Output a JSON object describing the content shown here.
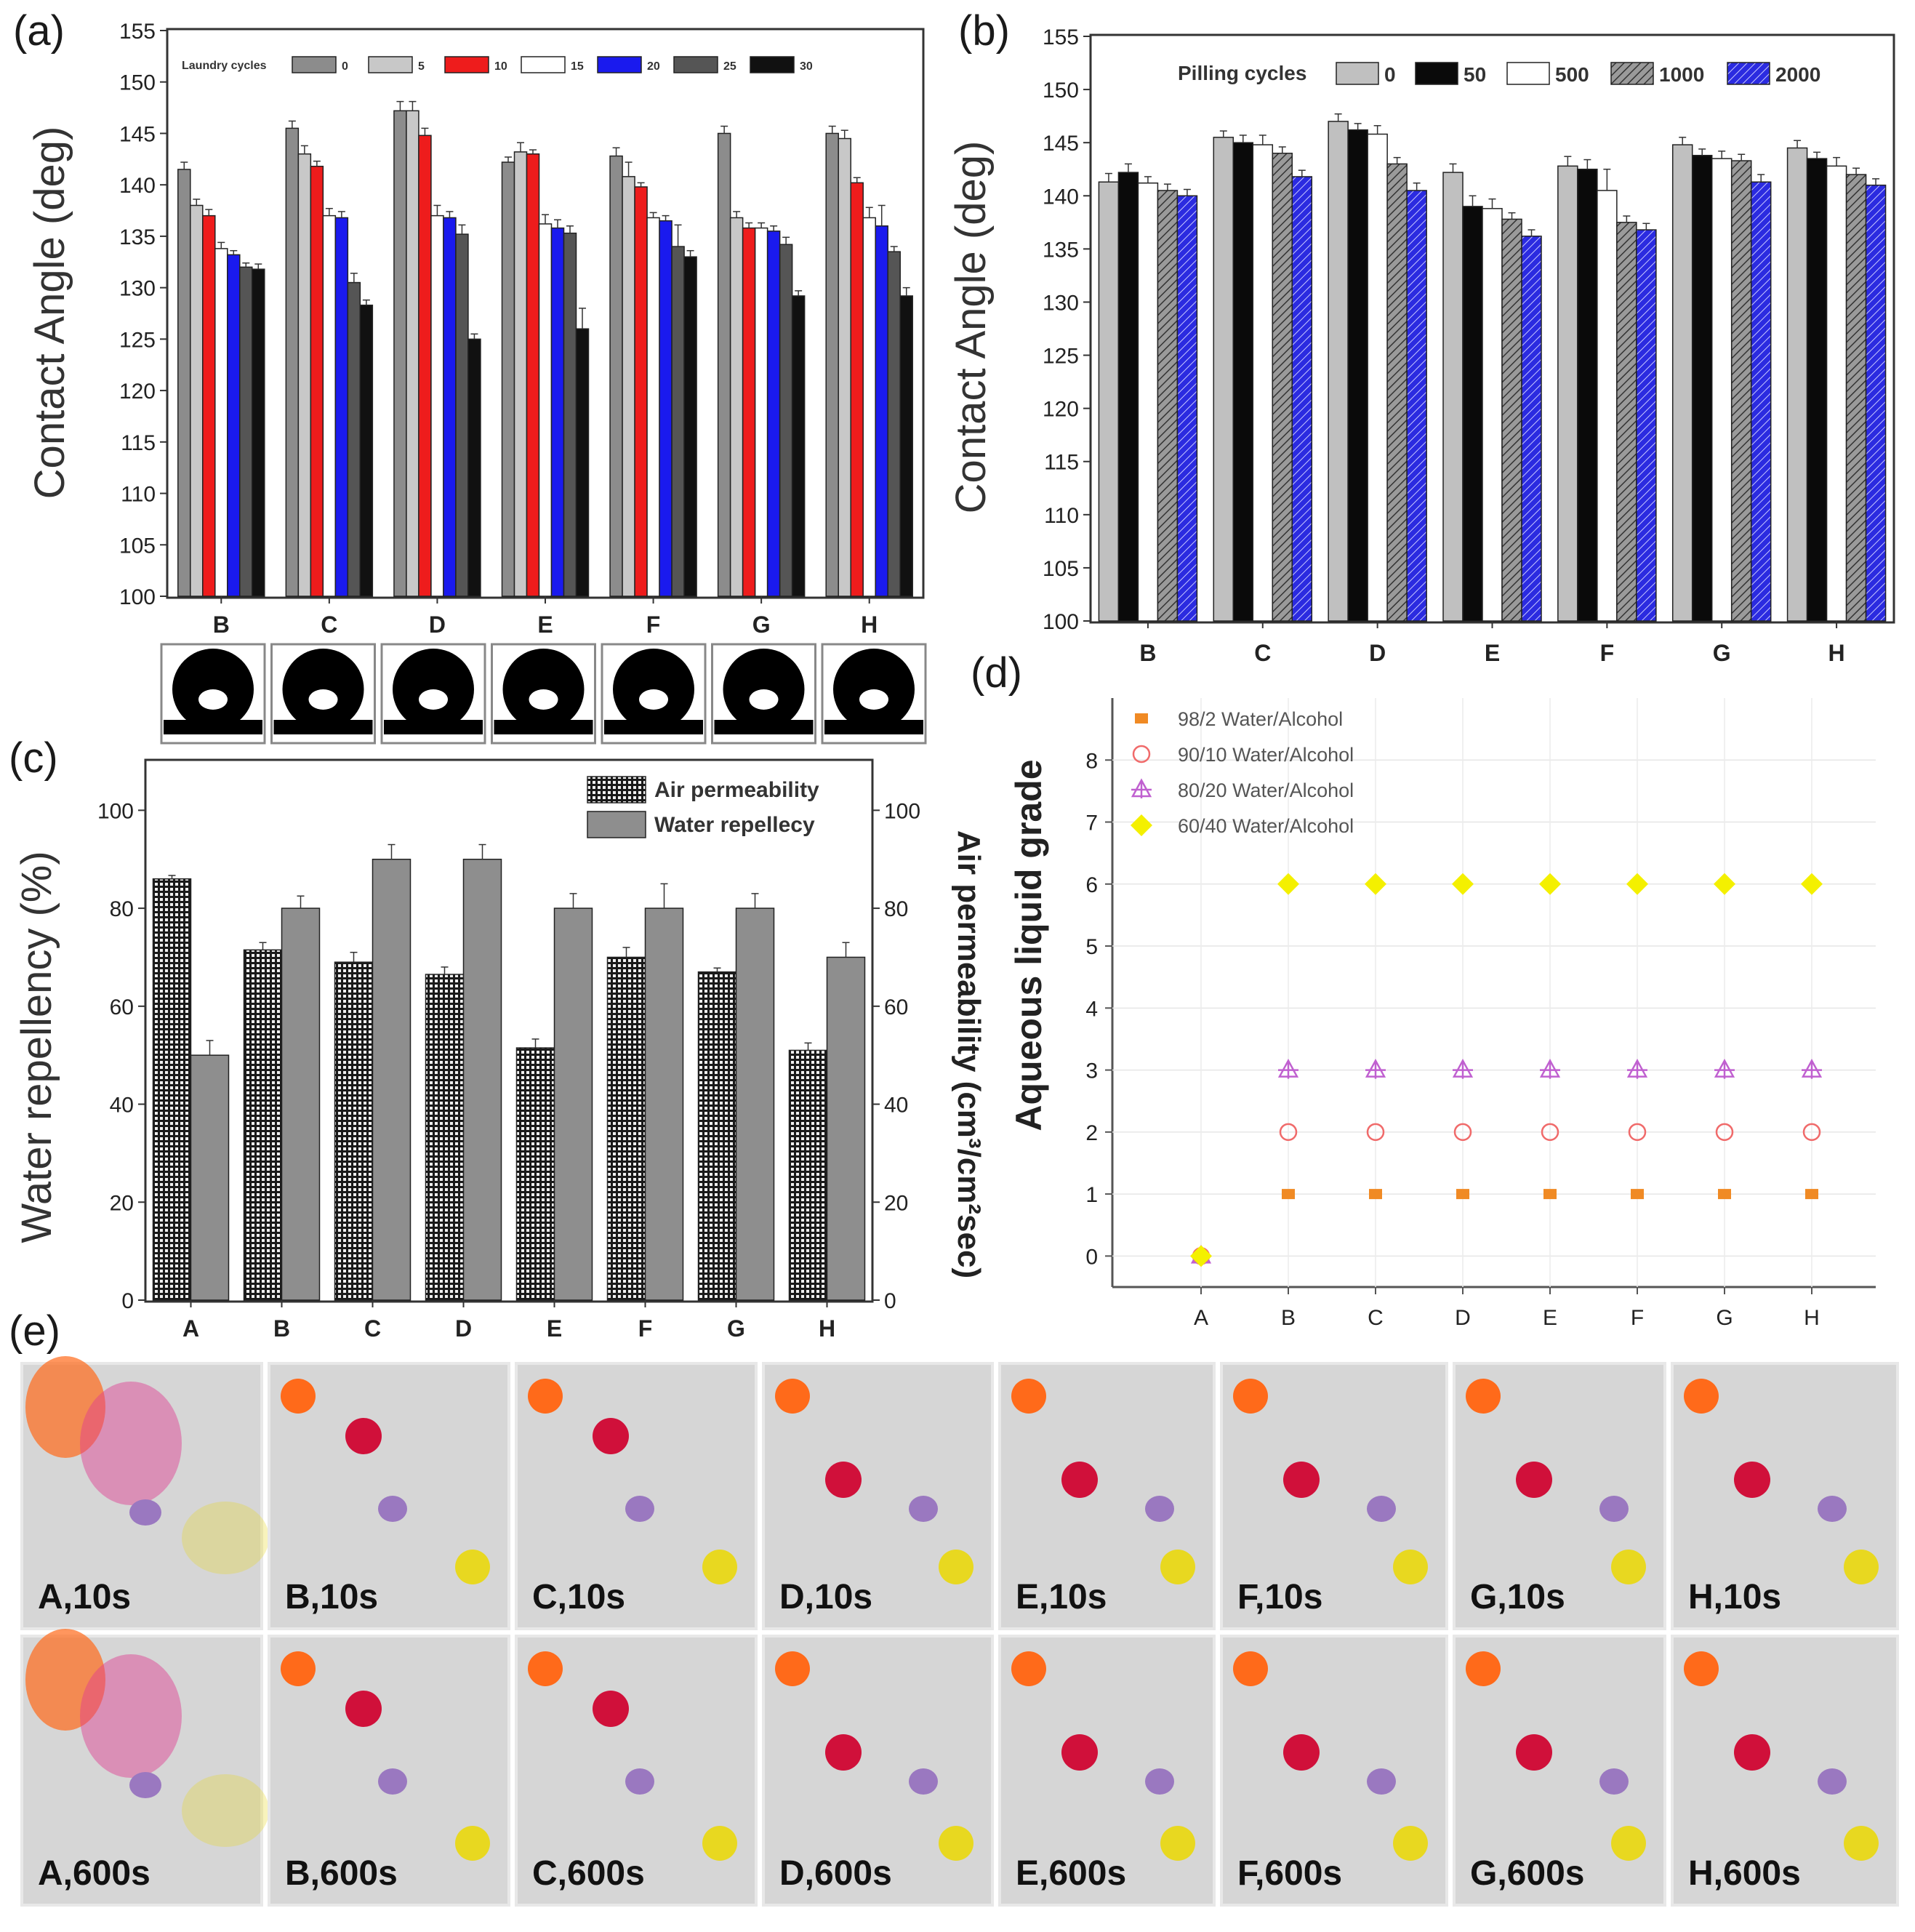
{
  "panels": {
    "a": "(a)",
    "b": "(b)",
    "c": "(c)",
    "d": "(d)",
    "e": "(e)"
  },
  "chart_data": [
    {
      "id": "a",
      "type": "bar",
      "ylabel": "Contact Angle (deg)",
      "ylim": [
        100,
        155
      ],
      "yticks": [
        100,
        105,
        110,
        115,
        120,
        125,
        130,
        135,
        140,
        145,
        150,
        155
      ],
      "categories": [
        "B",
        "C",
        "D",
        "E",
        "F",
        "G",
        "H"
      ],
      "legend_title": "Laundry cycles",
      "series": [
        {
          "name": "0",
          "color": "#8c8c8c",
          "values": [
            141.5,
            145.5,
            147.2,
            142.2,
            142.8,
            145.0,
            145.0
          ],
          "errors": [
            0.7,
            0.7,
            0.9,
            0.5,
            0.8,
            0.7,
            0.7
          ]
        },
        {
          "name": "5",
          "color": "#c8c8c8",
          "values": [
            138.0,
            143.0,
            147.2,
            143.2,
            140.8,
            136.8,
            144.5
          ],
          "errors": [
            0.6,
            0.8,
            0.9,
            0.9,
            1.4,
            0.6,
            0.8
          ]
        },
        {
          "name": "10",
          "color": "#ee1c1c",
          "values": [
            137.0,
            141.8,
            144.8,
            143.0,
            139.8,
            135.8,
            140.2
          ],
          "errors": [
            0.6,
            0.5,
            0.7,
            0.4,
            0.4,
            0.5,
            0.5
          ]
        },
        {
          "name": "15",
          "color": "#ffffff",
          "values": [
            133.8,
            137.0,
            137.0,
            136.2,
            136.8,
            135.8,
            136.8
          ],
          "errors": [
            0.6,
            0.7,
            1.0,
            0.9,
            0.5,
            0.5,
            1.0
          ]
        },
        {
          "name": "20",
          "color": "#1a1aee",
          "values": [
            133.2,
            136.8,
            136.8,
            135.8,
            136.5,
            135.5,
            136.0
          ],
          "errors": [
            0.4,
            0.6,
            0.6,
            0.8,
            0.5,
            0.5,
            2.0
          ]
        },
        {
          "name": "25",
          "color": "#555555",
          "values": [
            132.0,
            130.5,
            135.2,
            135.3,
            134.0,
            134.2,
            133.5
          ],
          "errors": [
            0.4,
            0.9,
            0.9,
            0.7,
            2.1,
            0.7,
            0.5
          ]
        },
        {
          "name": "30",
          "color": "#111111",
          "values": [
            131.8,
            128.3,
            125.0,
            126.0,
            133.0,
            129.2,
            129.2
          ],
          "errors": [
            0.5,
            0.5,
            0.5,
            2.0,
            0.6,
            0.5,
            0.8
          ]
        }
      ]
    },
    {
      "id": "b",
      "type": "bar",
      "ylabel": "Contact Angle (deg)",
      "ylim": [
        100,
        155
      ],
      "yticks": [
        100,
        105,
        110,
        115,
        120,
        125,
        130,
        135,
        140,
        145,
        150,
        155
      ],
      "categories": [
        "B",
        "C",
        "D",
        "E",
        "F",
        "G",
        "H"
      ],
      "legend_title": "Pilling cycles",
      "series": [
        {
          "name": "0",
          "color": "#c0c0c0",
          "values": [
            141.3,
            145.5,
            147.0,
            142.2,
            142.8,
            144.8,
            144.5
          ],
          "errors": [
            0.8,
            0.6,
            0.7,
            0.8,
            0.9,
            0.7,
            0.7
          ]
        },
        {
          "name": "50",
          "color": "#0a0a0a",
          "values": [
            142.2,
            145.0,
            146.2,
            139.0,
            142.5,
            143.8,
            143.5
          ],
          "errors": [
            0.8,
            0.7,
            0.6,
            1.0,
            0.9,
            0.6,
            0.6
          ]
        },
        {
          "name": "500",
          "color": "#ffffff",
          "values": [
            141.2,
            144.8,
            145.8,
            138.8,
            140.5,
            143.5,
            142.8
          ],
          "errors": [
            0.6,
            0.9,
            0.8,
            0.9,
            2.0,
            0.7,
            0.8
          ]
        },
        {
          "name": "1000",
          "color": "#888888",
          "hatch": true,
          "values": [
            140.5,
            144.0,
            143.0,
            137.8,
            137.5,
            143.3,
            142.0
          ],
          "errors": [
            0.6,
            0.6,
            0.6,
            0.6,
            0.6,
            0.6,
            0.6
          ]
        },
        {
          "name": "2000",
          "color": "#2b2bd8",
          "hatch": true,
          "values": [
            140.0,
            141.8,
            140.5,
            136.2,
            136.8,
            141.3,
            141.0
          ],
          "errors": [
            0.6,
            0.6,
            0.7,
            0.6,
            0.6,
            0.7,
            0.6
          ]
        }
      ]
    },
    {
      "id": "c",
      "type": "bar",
      "ylabel": "Water repellency (%)",
      "y2label": "Air permeability (cm³/cm²sec)",
      "ylim": [
        0,
        110
      ],
      "yticks": [
        0,
        20,
        40,
        60,
        80,
        100
      ],
      "categories": [
        "A",
        "B",
        "C",
        "D",
        "E",
        "F",
        "G",
        "H"
      ],
      "series": [
        {
          "name": "Air permeability",
          "color": "#2a2a2a",
          "pattern": "checker",
          "values": [
            86,
            71.5,
            69,
            66.5,
            51.5,
            70,
            67,
            51
          ],
          "errors": [
            0.7,
            1.5,
            2.0,
            1.5,
            1.8,
            2.0,
            0.8,
            1.5
          ]
        },
        {
          "name": "Water repellecy",
          "color": "#8e8e8e",
          "values": [
            50,
            80,
            90,
            90,
            80,
            80,
            80,
            70
          ],
          "errors": [
            3.0,
            2.5,
            3.0,
            3.0,
            3.0,
            5.0,
            3.0,
            3.0
          ]
        }
      ]
    },
    {
      "id": "d",
      "type": "scatter",
      "ylabel": "Aqueous liquid grade",
      "ylim": [
        -0.5,
        9
      ],
      "yticks": [
        0,
        1,
        2,
        3,
        4,
        5,
        6,
        7,
        8
      ],
      "categories": [
        "A",
        "B",
        "C",
        "D",
        "E",
        "F",
        "G",
        "H"
      ],
      "series": [
        {
          "name": "98/2  Water/Alcohol",
          "marker": "square",
          "color": "#f08a24",
          "values": [
            0,
            1,
            1,
            1,
            1,
            1,
            1,
            1
          ]
        },
        {
          "name": "90/10 Water/Alcohol",
          "marker": "circle",
          "color": "#f06a6a",
          "values": [
            0,
            2,
            2,
            2,
            2,
            2,
            2,
            2
          ]
        },
        {
          "name": "80/20 Water/Alcohol",
          "marker": "triangle",
          "color": "#c060d0",
          "values": [
            0,
            3,
            3,
            3,
            3,
            3,
            3,
            3
          ]
        },
        {
          "name": "60/40 Water/Alcohol",
          "marker": "diamond",
          "color": "#f4f000",
          "values": [
            0,
            6,
            6,
            6,
            6,
            6,
            6,
            6
          ]
        }
      ]
    }
  ],
  "photos": {
    "row1": [
      "A,10s",
      "B,10s",
      "C,10s",
      "D,10s",
      "E,10s",
      "F,10s",
      "G,10s",
      "H,10s"
    ],
    "row2": [
      "A,600s",
      "B,600s",
      "C,600s",
      "D,600s",
      "E,600s",
      "F,600s",
      "G,600s",
      "H,600s"
    ]
  },
  "colors": {
    "orange": "#ff6a1a",
    "red": "#d0103a",
    "purple": "#9a78c0",
    "yellow": "#e8d820",
    "pink": "#e03a90"
  }
}
